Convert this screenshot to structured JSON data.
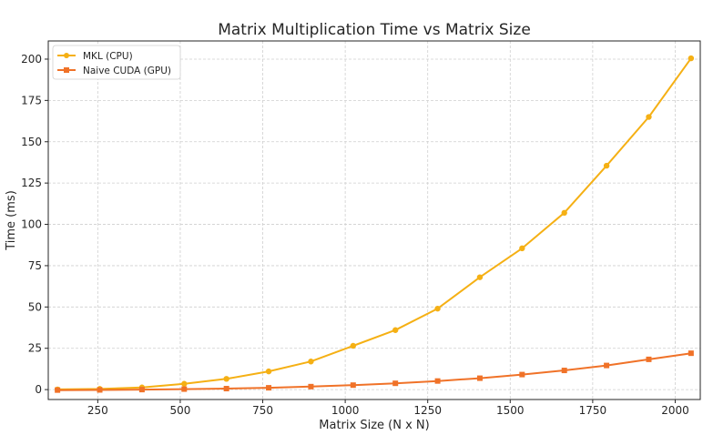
{
  "chart_data": {
    "type": "line",
    "title": "Matrix Multiplication Time vs Matrix Size",
    "xlabel": "Matrix Size (N x N)",
    "ylabel": "Time (ms)",
    "xlim": [
      100,
      2076
    ],
    "ylim": [
      -6,
      211
    ],
    "xticks": [
      250,
      500,
      750,
      1000,
      1250,
      1500,
      1750,
      2000
    ],
    "yticks": [
      0,
      25,
      50,
      75,
      100,
      125,
      150,
      175,
      200
    ],
    "grid": true,
    "legend_position": "top-left",
    "x": [
      128,
      256,
      384,
      512,
      640,
      768,
      896,
      1024,
      1152,
      1280,
      1408,
      1536,
      1664,
      1792,
      1920,
      2048
    ],
    "series": [
      {
        "name": "MKL (CPU)",
        "color": "#f5b014",
        "marker": "circle",
        "values": [
          0.1,
          0.4,
          1.3,
          3.5,
          6.5,
          11.0,
          17.0,
          26.5,
          36.0,
          49.0,
          68.0,
          85.5,
          107.0,
          135.5,
          165.0,
          200.5
        ]
      },
      {
        "name": "Naive CUDA (GPU)",
        "color": "#f07228",
        "marker": "square",
        "values": [
          -0.3,
          -0.2,
          0.0,
          0.3,
          0.6,
          1.1,
          1.8,
          2.7,
          3.8,
          5.2,
          6.9,
          9.1,
          11.6,
          14.6,
          18.3,
          22.0
        ]
      }
    ]
  }
}
